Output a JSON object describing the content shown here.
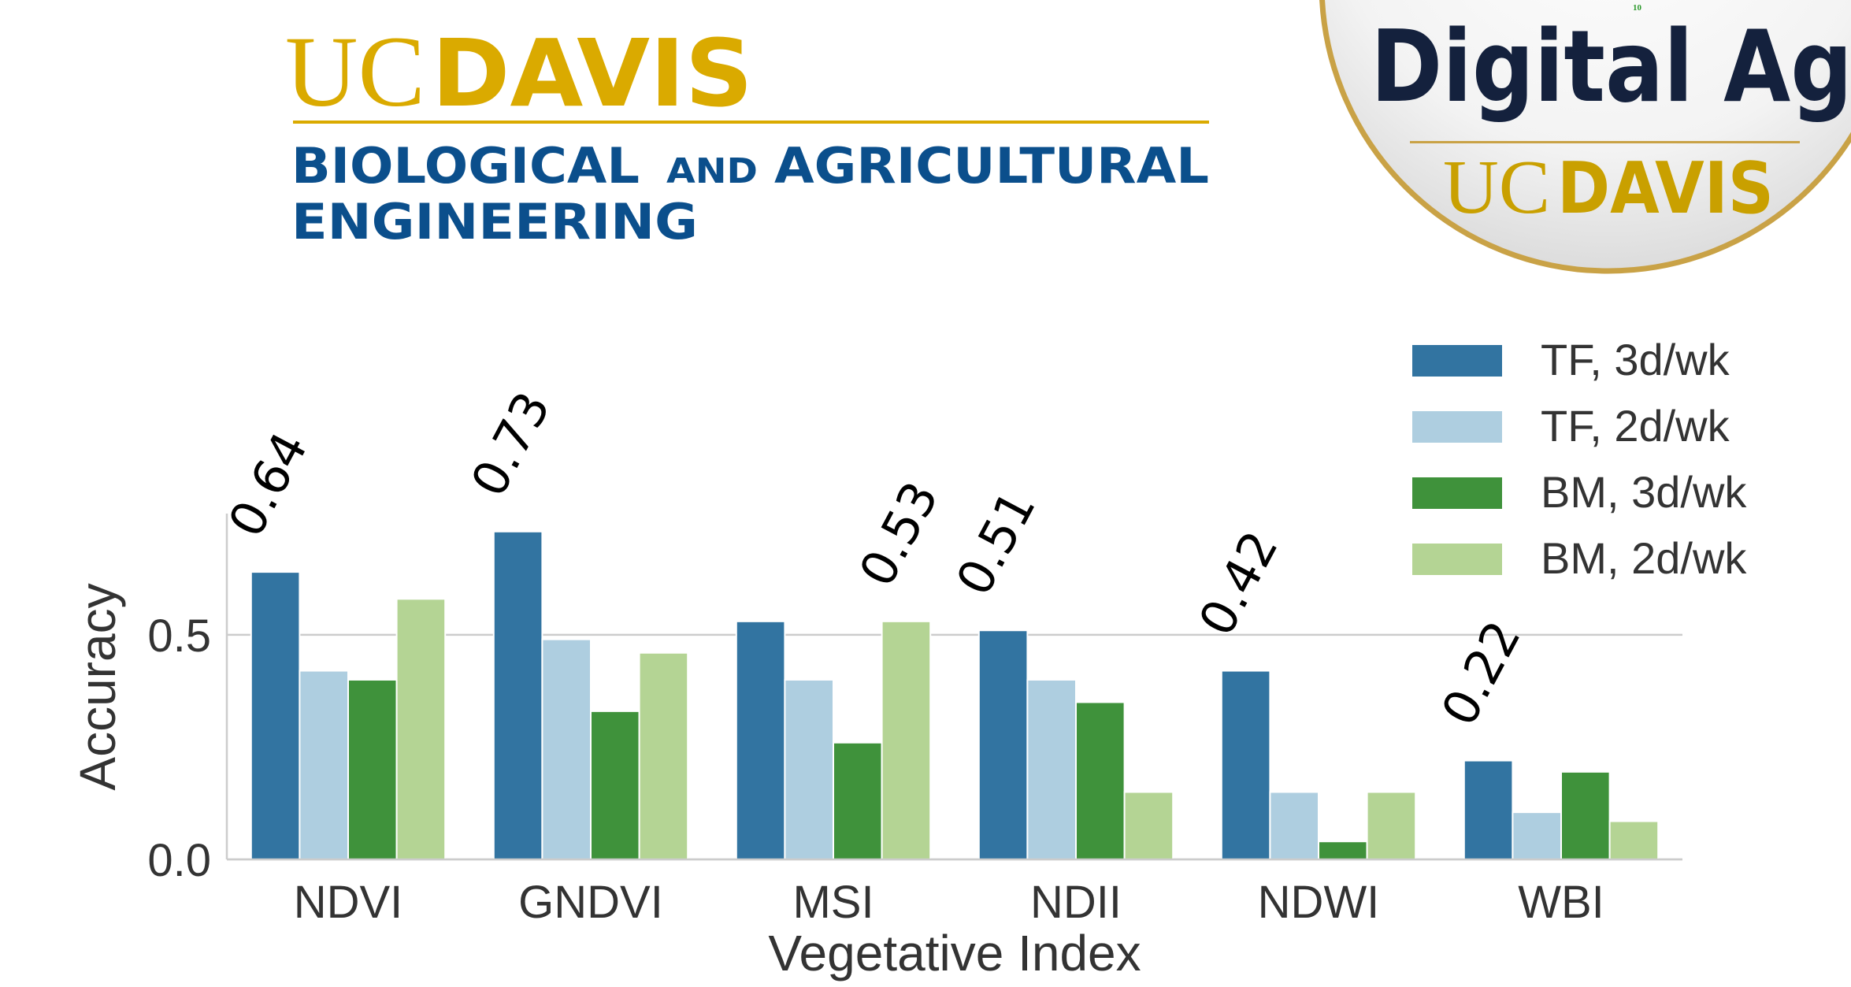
{
  "header": {
    "logo_uc": "UC",
    "logo_davis": "DAVIS",
    "department_words": [
      "BIOLOGICAL",
      "AND",
      "AGRICULTURAL",
      "ENGINEERING"
    ],
    "badge_title": "Digital Ag",
    "badge_uc": "UC",
    "badge_davis": "DAVIS",
    "page_number": "10"
  },
  "chart_data": {
    "type": "bar",
    "x_label": "Vegetative Index",
    "y_label": "Accuracy",
    "categories": [
      "NDVI",
      "GNDVI",
      "MSI",
      "NDII",
      "NDWI",
      "WBI"
    ],
    "series": [
      {
        "name": "TF, 3d/wk",
        "color": "#3274a1",
        "values": [
          0.64,
          0.73,
          0.53,
          0.51,
          0.42,
          0.22
        ],
        "value_labels": [
          "0.64",
          "0.73",
          null,
          "0.51",
          "0.42",
          "0.22"
        ]
      },
      {
        "name": "TF, 2d/wk",
        "color": "#aecee0",
        "values": [
          0.42,
          0.49,
          0.4,
          0.4,
          0.15,
          0.105
        ]
      },
      {
        "name": "BM, 3d/wk",
        "color": "#3f923b",
        "values": [
          0.4,
          0.33,
          0.26,
          0.35,
          0.04,
          0.195
        ]
      },
      {
        "name": "BM, 2d/wk",
        "color": "#b4d494",
        "values": [
          0.58,
          0.46,
          0.53,
          0.15,
          0.15,
          0.085
        ],
        "value_labels": [
          null,
          null,
          "0.53",
          null,
          null,
          null
        ]
      }
    ],
    "ylim": [
      0,
      0.77
    ],
    "yticks": [
      {
        "value": 0,
        "label": "0.0"
      },
      0.5
    ],
    "grid": true,
    "legend": "upper right"
  }
}
